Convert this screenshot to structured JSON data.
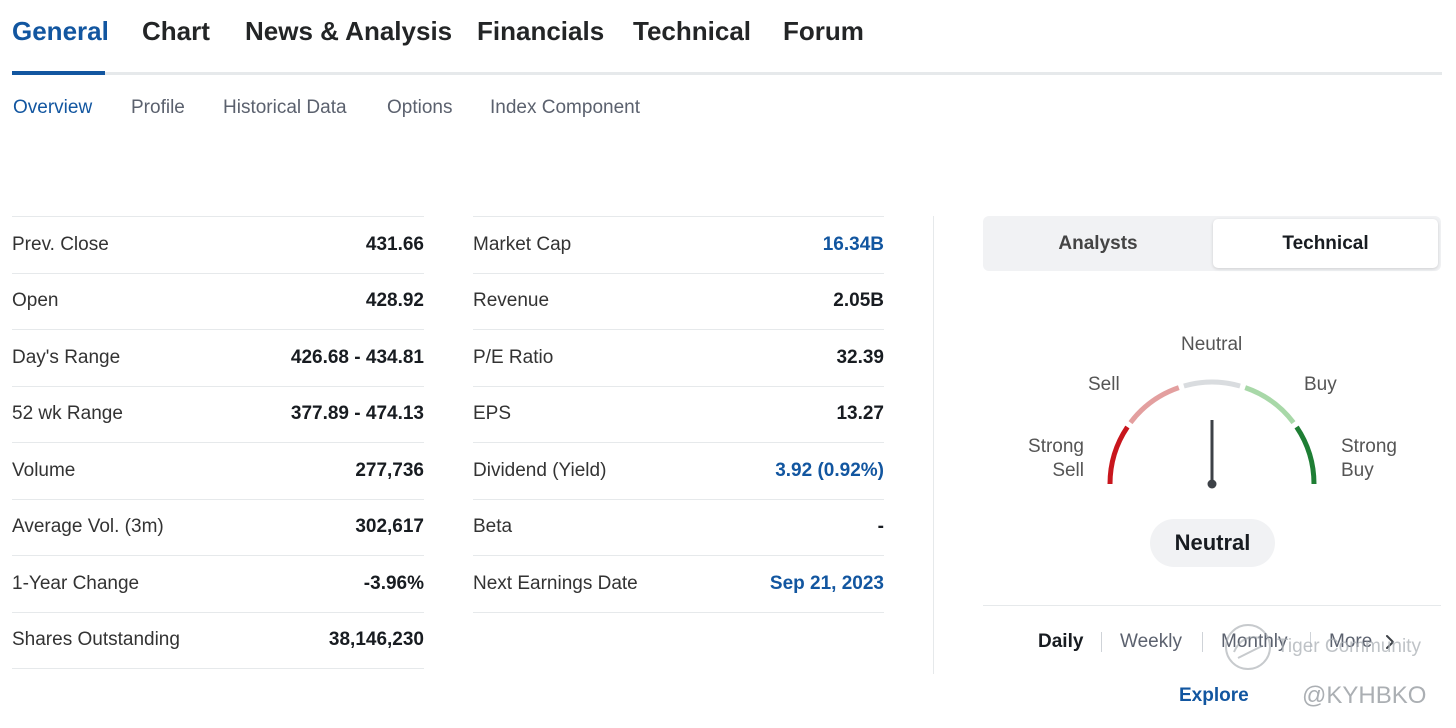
{
  "top_tabs": [
    {
      "label": "General",
      "active": true
    },
    {
      "label": "Chart",
      "active": false
    },
    {
      "label": "News & Analysis",
      "active": false
    },
    {
      "label": "Financials",
      "active": false
    },
    {
      "label": "Technical",
      "active": false
    },
    {
      "label": "Forum",
      "active": false
    }
  ],
  "sub_tabs": [
    {
      "label": "Overview",
      "active": true
    },
    {
      "label": "Profile",
      "active": false
    },
    {
      "label": "Historical Data",
      "active": false
    },
    {
      "label": "Options",
      "active": false
    },
    {
      "label": "Index Component",
      "active": false
    }
  ],
  "stats_left": [
    {
      "label": "Prev. Close",
      "value": "431.66"
    },
    {
      "label": "Open",
      "value": "428.92"
    },
    {
      "label": "Day's Range",
      "value": "426.68 - 434.81"
    },
    {
      "label": "52 wk Range",
      "value": "377.89 - 474.13"
    },
    {
      "label": "Volume",
      "value": "277,736"
    },
    {
      "label": "Average Vol. (3m)",
      "value": "302,617"
    },
    {
      "label": "1-Year Change",
      "value": "-3.96%"
    },
    {
      "label": "Shares Outstanding",
      "value": "38,146,230"
    }
  ],
  "stats_right": [
    {
      "label": "Market Cap",
      "value": "16.34B",
      "link": true
    },
    {
      "label": "Revenue",
      "value": "2.05B",
      "link": false
    },
    {
      "label": "P/E Ratio",
      "value": "32.39",
      "link": false
    },
    {
      "label": "EPS",
      "value": "13.27",
      "link": false
    },
    {
      "label": "Dividend (Yield)",
      "value": "3.92 (0.92%)",
      "link": true
    },
    {
      "label": "Beta",
      "value": "-",
      "link": false
    },
    {
      "label": "Next Earnings Date",
      "value": "Sep 21, 2023",
      "link": true
    }
  ],
  "panel": {
    "toggle": {
      "analysts": "Analysts",
      "technical": "Technical",
      "active": "Technical"
    },
    "gauge": {
      "neutral": "Neutral",
      "sell": "Sell",
      "buy": "Buy",
      "strong_sell": [
        "Strong",
        "Sell"
      ],
      "strong_buy": [
        "Strong",
        "Buy"
      ],
      "reading": "Neutral",
      "colors": {
        "strong_sell": "#c8161d",
        "sell": "#e39f9f",
        "neutral": "#d9dcdf",
        "buy": "#a8d8a8",
        "strong_buy": "#1e7e34",
        "needle": "#3d4147"
      }
    },
    "periods": [
      {
        "label": "Daily",
        "active": true
      },
      {
        "label": "Weekly",
        "active": false
      },
      {
        "label": "Monthly",
        "active": false
      },
      {
        "label": "More",
        "active": false
      }
    ],
    "explore": "Explore"
  },
  "watermark": {
    "text": "Tiger Community",
    "handle": "@KYHBKO"
  },
  "colors": {
    "accent": "#1256a0",
    "border": "#e6e9eb",
    "muted": "#5b616e"
  }
}
